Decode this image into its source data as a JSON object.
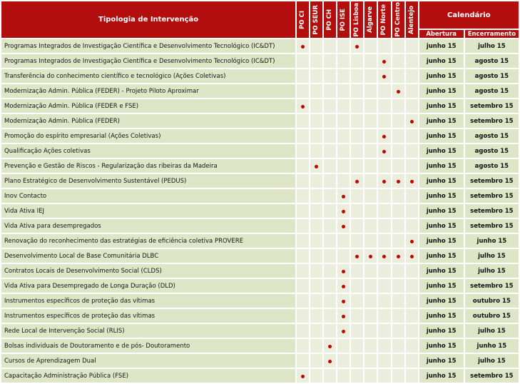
{
  "header": {
    "tipologia_label": "Tipologia de Intervenção",
    "program_columns": [
      "PO CI",
      "PO SEUR",
      "PO CH",
      "PO ISE",
      "PO Lisboa",
      "Algarve",
      "PO Norte",
      "PO Centro",
      "Alentejo"
    ],
    "calendario_label": "Calendário",
    "abertura_label": "Abertura",
    "encerramento_label": "Encerramento"
  },
  "colors": {
    "header_red": "#b30e0e",
    "dot_red": "#c00000",
    "row_green": "#dde6c6",
    "mark_cell_green": "#ebeedd",
    "header_text": "#ffffff"
  },
  "rows": [
    {
      "name": "Programas Integrados de Investigação Científica e Desenvolvimento Tecnológico (IC&DT)",
      "marks": [
        0,
        4
      ],
      "abertura": "junho 15",
      "encerramento": "julho 15"
    },
    {
      "name": "Programas Integrados de Investigação Científica e Desenvolvimento Tecnológico (IC&DT)",
      "marks": [
        6
      ],
      "abertura": "junho 15",
      "encerramento": "agosto 15"
    },
    {
      "name": "Transferência do conhecimento científico e tecnológico (Ações Coletivas)",
      "marks": [
        6
      ],
      "abertura": "junho 15",
      "encerramento": "agosto 15"
    },
    {
      "name": "Modernização Admin. Pública (FEDER) - Projeto Piloto Aproximar",
      "marks": [
        7
      ],
      "abertura": "junho 15",
      "encerramento": "agosto 15"
    },
    {
      "name": "Modernização Admin. Pública (FEDER e FSE)",
      "marks": [
        0
      ],
      "abertura": "junho 15",
      "encerramento": "setembro 15"
    },
    {
      "name": "Modernização Admin. Pública (FEDER)",
      "marks": [
        8
      ],
      "abertura": "junho 15",
      "encerramento": "setembro 15"
    },
    {
      "name": "Promoção do espírito empresarial (Ações Coletivas)",
      "marks": [
        6
      ],
      "abertura": "junho 15",
      "encerramento": "agosto 15"
    },
    {
      "name": "Qualificação Ações coletivas",
      "marks": [
        6
      ],
      "abertura": "junho 15",
      "encerramento": "agosto 15"
    },
    {
      "name": "Prevenção e Gestão de Riscos - Regularização das ribeiras da Madeira",
      "marks": [
        1
      ],
      "abertura": "junho 15",
      "encerramento": "agosto 15"
    },
    {
      "name": "Plano Estratégico de Desenvolvimento Sustentável (PEDUS)",
      "marks": [
        4,
        6,
        7,
        8
      ],
      "abertura": "junho 15",
      "encerramento": "setembro 15"
    },
    {
      "name": "Inov Contacto",
      "marks": [
        3
      ],
      "abertura": "junho 15",
      "encerramento": "setembro 15"
    },
    {
      "name": "Vida Ativa IEJ",
      "marks": [
        3
      ],
      "abertura": "junho 15",
      "encerramento": "setembro 15"
    },
    {
      "name": "Vida Ativa para desempregados",
      "marks": [
        3
      ],
      "abertura": "junho 15",
      "encerramento": "setembro 15"
    },
    {
      "name": "Renovação do reconhecimento das estratégias de eficiência coletiva PROVERE",
      "marks": [
        8
      ],
      "abertura": "junho 15",
      "encerramento": "junho 15"
    },
    {
      "name": "Desenvolvimento Local de Base Comunitária DLBC",
      "marks": [
        4,
        5,
        6,
        7,
        8
      ],
      "abertura": "junho 15",
      "encerramento": "julho 15"
    },
    {
      "name": "Contratos Locais de Desenvolvimento Social (CLDS)",
      "marks": [
        3
      ],
      "abertura": "junho 15",
      "encerramento": "julho 15"
    },
    {
      "name": "Vida Ativa para Desempregado de Longa Duração (DLD)",
      "marks": [
        3
      ],
      "abertura": "junho 15",
      "encerramento": "setembro 15"
    },
    {
      "name": "Instrumentos específicos de proteção das vítimas",
      "marks": [
        3
      ],
      "abertura": "junho 15",
      "encerramento": "outubro 15"
    },
    {
      "name": "Instrumentos específicos de proteção das vítimas",
      "marks": [
        3
      ],
      "abertura": "junho 15",
      "encerramento": "outubro 15"
    },
    {
      "name": "Rede Local de Intervenção Social (RLIS)",
      "marks": [
        3
      ],
      "abertura": "junho 15",
      "encerramento": "julho 15"
    },
    {
      "name": "Bolsas individuais de Doutoramento e de pós- Doutoramento",
      "marks": [
        2
      ],
      "abertura": "junho 15",
      "encerramento": "junho 15"
    },
    {
      "name": "Cursos de Aprendizagem Dual",
      "marks": [
        2
      ],
      "abertura": "junho 15",
      "encerramento": "julho 15"
    },
    {
      "name": "Capacitação Administração Pública (FSE)",
      "marks": [
        0
      ],
      "abertura": "junho 15",
      "encerramento": "setembro 15"
    }
  ]
}
